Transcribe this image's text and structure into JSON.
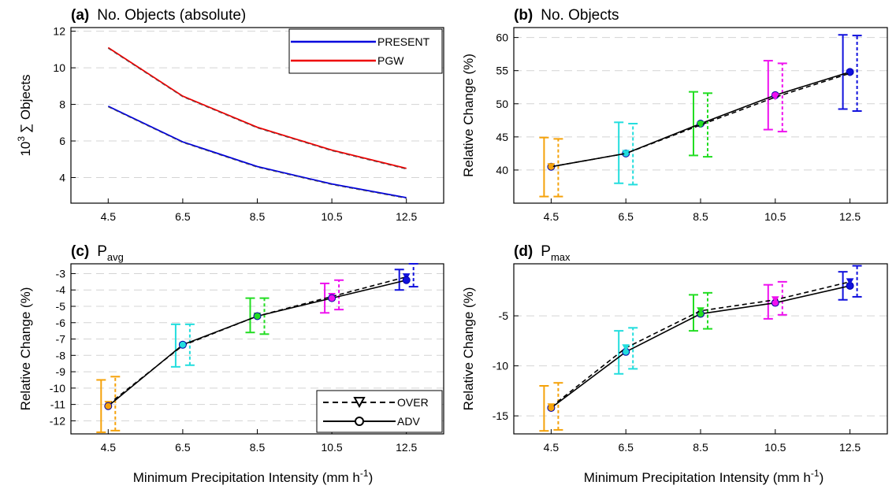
{
  "x_axis_label": "Minimum Precipitation Intensity (mm h",
  "x_axis_label_sup": "-1",
  "x_axis_label_end": ")",
  "chart_data": [
    {
      "id": "a",
      "type": "line",
      "panel_label": "(a)",
      "title": "No. Objects (absolute)",
      "title_sub": "",
      "ylabel_prefix": "10",
      "ylabel_sup": "3",
      "ylabel": "∑ Objects",
      "x": [
        4.5,
        6.5,
        8.5,
        10.5,
        12.5
      ],
      "xlim": [
        3.5,
        13.5
      ],
      "ylim": [
        2.6,
        12.2
      ],
      "yticks": [
        4,
        6,
        8,
        10,
        12
      ],
      "legend_position": "top-right",
      "series": [
        {
          "name": "PRESENT",
          "color": "#0000dd",
          "values": [
            7.9,
            5.95,
            4.6,
            3.65,
            2.9
          ]
        },
        {
          "name": "PGW",
          "color": "#ee0000",
          "values": [
            11.1,
            8.45,
            6.75,
            5.5,
            4.5
          ]
        }
      ]
    },
    {
      "id": "b",
      "type": "line",
      "panel_label": "(b)",
      "title": "No. Objects",
      "title_sub": "",
      "ylabel": "Relative Change (%)",
      "x": [
        4.5,
        6.5,
        8.5,
        10.5,
        12.5
      ],
      "xlim": [
        3.5,
        13.5
      ],
      "ylim": [
        35,
        61.5
      ],
      "yticks": [
        40,
        45,
        50,
        55,
        60
      ],
      "colors": [
        "#f5a20a",
        "#22dddd",
        "#22dd22",
        "#ee11ee",
        "#1111dd"
      ],
      "series": [
        {
          "name": "ADV",
          "values": [
            40.5,
            42.5,
            47.0,
            51.3,
            54.8
          ],
          "err_low": [
            36.0,
            38.0,
            42.2,
            46.1,
            49.2
          ],
          "err_high": [
            44.9,
            47.2,
            51.8,
            56.5,
            60.4
          ]
        },
        {
          "name": "OVER",
          "values": [
            40.5,
            42.5,
            46.8,
            51.0,
            54.6
          ],
          "err_low": [
            36.0,
            37.8,
            42.0,
            45.8,
            48.9
          ],
          "err_high": [
            44.7,
            47.0,
            51.6,
            56.1,
            60.3
          ]
        }
      ]
    },
    {
      "id": "c",
      "type": "line",
      "panel_label": "(c)",
      "title": "P",
      "title_sub": "avg",
      "ylabel": "Relative Change (%)",
      "x": [
        4.5,
        6.5,
        8.5,
        10.5,
        12.5
      ],
      "xlim": [
        3.5,
        13.5
      ],
      "ylim": [
        -12.8,
        -2.4
      ],
      "yticks": [
        -12,
        -11,
        -10,
        -9,
        -8,
        -7,
        -6,
        -5,
        -4,
        -3
      ],
      "legend_position": "bottom-right",
      "colors": [
        "#f5a20a",
        "#22dddd",
        "#22dd22",
        "#ee11ee",
        "#1111dd"
      ],
      "series": [
        {
          "name": "OVER",
          "values": [
            -11.0,
            -7.4,
            -5.6,
            -4.4,
            -3.2
          ],
          "err_low": [
            -12.6,
            -8.6,
            -6.7,
            -5.2,
            -3.8
          ],
          "err_high": [
            -9.3,
            -6.1,
            -4.5,
            -3.4,
            -2.4
          ]
        },
        {
          "name": "ADV",
          "values": [
            -11.1,
            -7.35,
            -5.6,
            -4.5,
            -3.4
          ],
          "err_low": [
            -12.7,
            -8.7,
            -6.6,
            -5.4,
            -4.0
          ],
          "err_high": [
            -9.5,
            -6.1,
            -4.5,
            -3.6,
            -2.75
          ]
        }
      ]
    },
    {
      "id": "d",
      "type": "line",
      "panel_label": "(d)",
      "title": "P",
      "title_sub": "max",
      "ylabel": "Relative Change (%)",
      "x": [
        4.5,
        6.5,
        8.5,
        10.5,
        12.5
      ],
      "xlim": [
        3.5,
        13.5
      ],
      "ylim": [
        -16.8,
        0.2
      ],
      "yticks": [
        -15,
        -10,
        -5
      ],
      "colors": [
        "#f5a20a",
        "#22dddd",
        "#22dd22",
        "#ee11ee",
        "#1111dd"
      ],
      "series": [
        {
          "name": "ADV",
          "values": [
            -14.2,
            -8.6,
            -4.8,
            -3.7,
            -2.0
          ],
          "err_low": [
            -16.5,
            -10.8,
            -6.5,
            -5.3,
            -3.4
          ],
          "err_high": [
            -12.0,
            -6.5,
            -2.9,
            -1.9,
            -0.6
          ]
        },
        {
          "name": "OVER",
          "values": [
            -14.1,
            -8.2,
            -4.5,
            -3.4,
            -1.6
          ],
          "err_low": [
            -16.4,
            -10.3,
            -6.3,
            -4.9,
            -3.1
          ],
          "err_high": [
            -11.7,
            -6.2,
            -2.7,
            -1.6,
            0.0
          ]
        }
      ]
    }
  ]
}
